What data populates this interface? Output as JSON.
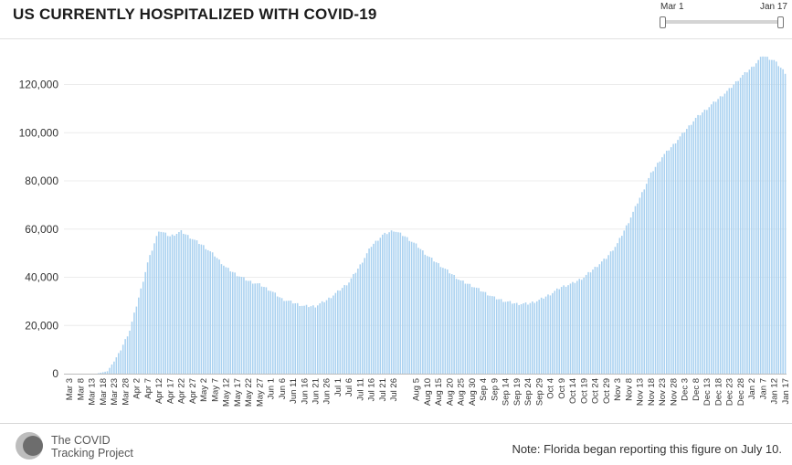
{
  "chart_data": {
    "type": "bar",
    "title": "US CURRENTLY HOSPITALIZED WITH COVID-19",
    "xlabel": "",
    "ylabel": "",
    "ylim": [
      0,
      135000
    ],
    "y_ticks": [
      0,
      20000,
      40000,
      60000,
      80000,
      100000,
      120000
    ],
    "y_tick_labels": [
      "0",
      "20,000",
      "40,000",
      "60,000",
      "80,000",
      "100,000",
      "120,000"
    ],
    "x_tick_labels": [
      "Mar 3",
      "Mar 8",
      "Mar 13",
      "Mar 18",
      "Mar 23",
      "Mar 28",
      "Apr 2",
      "Apr 7",
      "Apr 12",
      "Apr 17",
      "Apr 22",
      "Apr 27",
      "May 2",
      "May 7",
      "May 12",
      "May 17",
      "May 22",
      "May 27",
      "Jun 1",
      "Jun 6",
      "Jun 11",
      "Jun 16",
      "Jun 21",
      "Jun 26",
      "Jul 1",
      "Jul 6",
      "Jul 11",
      "Jul 16",
      "Jul 21",
      "Jul 26",
      "Aug 5",
      "Aug 10",
      "Aug 15",
      "Aug 20",
      "Aug 25",
      "Aug 30",
      "Sep 4",
      "Sep 9",
      "Sep 14",
      "Sep 19",
      "Sep 24",
      "Sep 29",
      "Oct 4",
      "Oct 9",
      "Oct 14",
      "Oct 19",
      "Oct 24",
      "Oct 29",
      "Nov 3",
      "Nov 8",
      "Nov 13",
      "Nov 18",
      "Nov 23",
      "Nov 28",
      "Dec 3",
      "Dec 8",
      "Dec 13",
      "Dec 18",
      "Dec 23",
      "Dec 28",
      "Jan 2",
      "Jan 7",
      "Jan 12",
      "Jan 17"
    ],
    "bar_color": "#a9d1f0",
    "grid": true,
    "legend": "none",
    "series_keypoints": {
      "name": "",
      "x_dates": [
        "Mar 1",
        "Mar 15",
        "Mar 20",
        "Mar 25",
        "Mar 30",
        "Apr 4",
        "Apr 7",
        "Apr 12",
        "Apr 17",
        "Apr 22",
        "Apr 27",
        "May 2",
        "May 7",
        "May 12",
        "May 17",
        "May 22",
        "May 27",
        "Jun 1",
        "Jun 6",
        "Jun 11",
        "Jun 16",
        "Jun 21",
        "Jun 26",
        "Jul 1",
        "Jul 6",
        "Jul 11",
        "Jul 16",
        "Jul 21",
        "Jul 26",
        "Jul 31",
        "Aug 5",
        "Aug 10",
        "Aug 15",
        "Aug 20",
        "Aug 25",
        "Aug 30",
        "Sep 4",
        "Sep 9",
        "Sep 14",
        "Sep 19",
        "Sep 24",
        "Sep 29",
        "Oct 4",
        "Oct 9",
        "Oct 14",
        "Oct 19",
        "Oct 24",
        "Oct 29",
        "Nov 3",
        "Nov 8",
        "Nov 13",
        "Nov 18",
        "Nov 23",
        "Nov 28",
        "Dec 3",
        "Dec 8",
        "Dec 13",
        "Dec 18",
        "Dec 23",
        "Dec 28",
        "Jan 2",
        "Jan 7",
        "Jan 12",
        "Jan 17"
      ],
      "values": [
        0,
        0,
        1000,
        8000,
        18000,
        35000,
        46000,
        59500,
        57000,
        59000,
        56000,
        53000,
        49000,
        44000,
        41000,
        38500,
        37000,
        34500,
        31000,
        29500,
        28000,
        28000,
        30500,
        34000,
        38000,
        45000,
        53000,
        57500,
        59500,
        57000,
        53500,
        49000,
        45500,
        42000,
        38500,
        36500,
        34000,
        31500,
        30000,
        29000,
        29000,
        30500,
        33000,
        36000,
        37500,
        40000,
        44000,
        48000,
        54000,
        63000,
        73000,
        83000,
        90000,
        95000,
        100500,
        106000,
        110000,
        114000,
        118000,
        123000,
        127000,
        132000,
        130000,
        125000
      ]
    }
  },
  "range_slider": {
    "start_label": "Mar 1",
    "end_label": "Jan 17"
  },
  "footer": {
    "brand_line1": "The COVID",
    "brand_line2": "Tracking Project",
    "note": "Note: Florida began reporting this figure on July 10."
  }
}
